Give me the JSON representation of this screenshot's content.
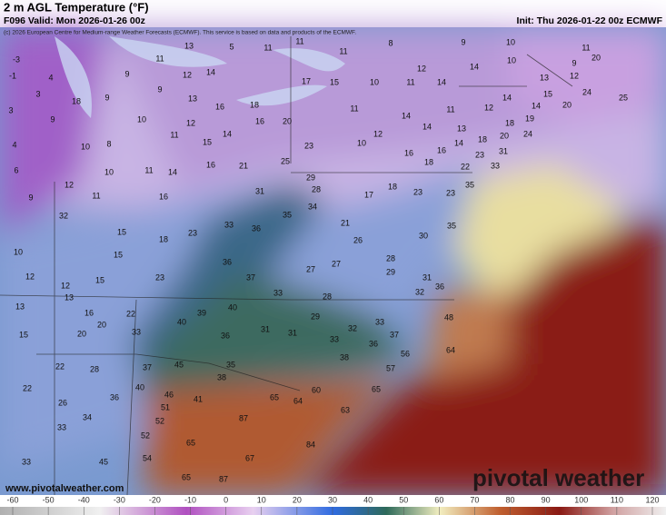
{
  "header": {
    "title": "2 m AGL Temperature (°F)",
    "valid": "F096 Valid: Mon 2026-01-26 00z",
    "init": "Init: Thu 2026-01-22 00z ECMWF",
    "copyright": "(c) 2026 European Centre for Medium-range Weather Forecasts (ECMWF). This service is based on data and products of the ECMWF."
  },
  "map": {
    "stations": [
      -3,
      -1,
      4,
      3,
      3,
      9,
      18,
      9,
      13,
      11,
      9,
      12,
      14,
      9,
      5,
      11,
      11,
      8,
      9,
      10,
      11,
      20,
      9,
      12,
      25,
      11,
      10,
      12,
      14,
      17,
      15,
      10,
      11,
      14,
      13,
      15,
      24,
      14,
      14,
      20,
      12,
      13,
      16,
      18,
      11,
      11,
      10,
      12,
      16,
      20,
      14,
      14,
      13,
      18,
      19,
      20,
      24,
      4,
      10,
      8,
      11,
      15,
      14,
      23,
      12,
      10,
      16,
      16,
      14,
      18,
      23,
      31,
      6,
      10,
      11,
      14,
      16,
      21,
      25,
      18,
      22,
      33,
      12,
      11,
      29,
      17,
      18,
      35,
      23,
      9,
      32,
      16,
      31,
      28,
      23,
      34,
      35,
      21,
      33,
      36,
      35,
      15,
      18,
      23,
      26,
      30,
      10,
      15,
      28,
      36,
      27,
      27,
      29,
      31,
      12,
      23,
      15,
      37,
      36,
      12,
      33,
      28,
      32,
      13,
      13,
      40,
      16,
      22,
      39,
      29,
      48,
      20,
      40,
      31,
      32,
      33,
      15,
      20,
      31,
      36,
      33,
      37,
      36,
      33,
      38,
      64,
      22,
      28,
      37,
      45,
      35,
      57,
      38,
      56,
      22,
      40,
      46,
      60,
      65,
      36,
      41,
      65,
      64,
      51,
      63,
      26,
      34,
      52,
      87,
      33,
      52,
      65,
      84,
      45,
      54,
      67,
      33,
      65,
      87
    ]
  },
  "footer": {
    "url": "www.pivotalweather.com",
    "brand": "pivotal weather"
  },
  "colorbar": {
    "ticks": [
      -60,
      -50,
      -40,
      -30,
      -20,
      -10,
      0,
      10,
      20,
      30,
      40,
      50,
      60,
      70,
      80,
      90,
      100,
      110,
      120
    ]
  }
}
